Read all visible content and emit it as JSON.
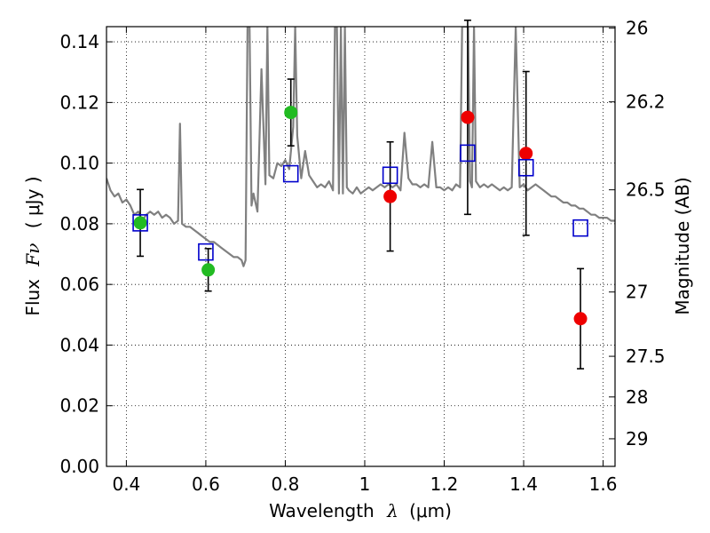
{
  "chart_data": {
    "type": "scatter",
    "xlabel_prefix": "Wavelength",
    "xlabel_symbol": "λ",
    "xlabel_unit": "(μm)",
    "ylabel_prefix": "Flux",
    "ylabel_symbol": "Fν",
    "ylabel_unit": "( μJy )",
    "y2label": "Magnitude (AB)",
    "xlim": [
      0.35,
      1.63
    ],
    "ylim": [
      0.0,
      0.145
    ],
    "x_ticks": [
      0.4,
      0.6,
      0.8,
      1.0,
      1.2,
      1.4,
      1.6
    ],
    "x_tick_labels": [
      "0.4",
      "0.6",
      "0.8",
      "1",
      "1.2",
      "1.4",
      "1.6"
    ],
    "y_ticks": [
      0.0,
      0.02,
      0.04,
      0.06,
      0.08,
      0.1,
      0.12,
      0.14
    ],
    "y_tick_labels": [
      "0.00",
      "0.02",
      "0.04",
      "0.06",
      "0.08",
      "0.10",
      "0.12",
      "0.14"
    ],
    "y2_ticks": [
      {
        "label": "26",
        "flux": 0.1445
      },
      {
        "label": "26.2",
        "flux": 0.1202
      },
      {
        "label": "26.5",
        "flux": 0.0912
      },
      {
        "label": "27",
        "flux": 0.0575
      },
      {
        "label": "27.5",
        "flux": 0.0363
      },
      {
        "label": "28",
        "flux": 0.0229
      },
      {
        "label": "29",
        "flux": 0.0091
      }
    ],
    "grid": true,
    "colors": {
      "green": "#22bb22",
      "red": "#ee0000",
      "model": "#808080",
      "model_marker": "#0000cc",
      "errorbar": "#000000"
    },
    "series": [
      {
        "marker": "circle",
        "color": "green",
        "x": [
          0.435,
          0.606,
          0.814
        ],
        "y": [
          0.0803,
          0.0648,
          0.1167
        ],
        "yerr": [
          0.011,
          0.007,
          0.011
        ]
      },
      {
        "marker": "circle",
        "color": "red",
        "x": [
          1.064,
          1.259,
          1.406,
          1.543
        ],
        "y": [
          0.089,
          0.1151,
          0.1032,
          0.0487
        ],
        "yerr": [
          0.018,
          0.032,
          0.027,
          0.0165
        ]
      },
      {
        "marker": "open-square",
        "color": "model_marker",
        "x": [
          0.435,
          0.6,
          0.814,
          1.064,
          1.259,
          1.406,
          1.543
        ],
        "y": [
          0.0803,
          0.0707,
          0.0965,
          0.096,
          0.1033,
          0.0985,
          0.0786
        ]
      },
      {
        "marker": "line",
        "color": "model",
        "x": [
          0.35,
          0.36,
          0.37,
          0.38,
          0.39,
          0.4,
          0.41,
          0.42,
          0.43,
          0.44,
          0.45,
          0.46,
          0.47,
          0.48,
          0.49,
          0.5,
          0.51,
          0.52,
          0.53,
          0.535,
          0.54,
          0.55,
          0.56,
          0.57,
          0.58,
          0.59,
          0.6,
          0.61,
          0.62,
          0.63,
          0.64,
          0.65,
          0.66,
          0.67,
          0.68,
          0.69,
          0.695,
          0.7,
          0.705,
          0.71,
          0.715,
          0.72,
          0.73,
          0.74,
          0.75,
          0.755,
          0.76,
          0.77,
          0.78,
          0.79,
          0.8,
          0.81,
          0.82,
          0.825,
          0.83,
          0.84,
          0.85,
          0.86,
          0.87,
          0.88,
          0.89,
          0.9,
          0.91,
          0.92,
          0.925,
          0.93,
          0.935,
          0.94,
          0.945,
          0.95,
          0.955,
          0.96,
          0.97,
          0.98,
          0.99,
          1.0,
          1.01,
          1.02,
          1.03,
          1.04,
          1.05,
          1.06,
          1.07,
          1.08,
          1.09,
          1.1,
          1.11,
          1.12,
          1.13,
          1.14,
          1.15,
          1.16,
          1.17,
          1.18,
          1.19,
          1.2,
          1.21,
          1.22,
          1.23,
          1.24,
          1.245,
          1.25,
          1.255,
          1.26,
          1.265,
          1.27,
          1.275,
          1.28,
          1.29,
          1.3,
          1.31,
          1.32,
          1.33,
          1.34,
          1.35,
          1.36,
          1.37,
          1.38,
          1.39,
          1.4,
          1.41,
          1.42,
          1.43,
          1.44,
          1.45,
          1.46,
          1.47,
          1.48,
          1.49,
          1.5,
          1.51,
          1.52,
          1.53,
          1.54,
          1.55,
          1.56,
          1.57,
          1.58,
          1.59,
          1.6,
          1.61,
          1.62,
          1.63
        ],
        "y": [
          0.095,
          0.091,
          0.089,
          0.09,
          0.087,
          0.088,
          0.086,
          0.083,
          0.084,
          0.081,
          0.083,
          0.084,
          0.083,
          0.084,
          0.082,
          0.083,
          0.082,
          0.08,
          0.081,
          0.113,
          0.08,
          0.079,
          0.079,
          0.078,
          0.077,
          0.076,
          0.075,
          0.074,
          0.074,
          0.073,
          0.072,
          0.071,
          0.07,
          0.069,
          0.069,
          0.068,
          0.066,
          0.068,
          0.145,
          0.145,
          0.086,
          0.09,
          0.084,
          0.131,
          0.093,
          0.145,
          0.096,
          0.095,
          0.1,
          0.099,
          0.101,
          0.098,
          0.112,
          0.145,
          0.109,
          0.095,
          0.104,
          0.096,
          0.094,
          0.092,
          0.093,
          0.092,
          0.094,
          0.091,
          0.145,
          0.145,
          0.09,
          0.145,
          0.09,
          0.145,
          0.092,
          0.091,
          0.09,
          0.092,
          0.09,
          0.091,
          0.092,
          0.091,
          0.092,
          0.093,
          0.092,
          0.093,
          0.092,
          0.093,
          0.091,
          0.11,
          0.095,
          0.093,
          0.093,
          0.092,
          0.093,
          0.092,
          0.107,
          0.092,
          0.092,
          0.091,
          0.092,
          0.091,
          0.093,
          0.092,
          0.145,
          0.145,
          0.145,
          0.145,
          0.094,
          0.092,
          0.145,
          0.094,
          0.092,
          0.093,
          0.092,
          0.093,
          0.092,
          0.091,
          0.092,
          0.091,
          0.092,
          0.145,
          0.092,
          0.093,
          0.091,
          0.092,
          0.093,
          0.092,
          0.091,
          0.09,
          0.089,
          0.089,
          0.088,
          0.087,
          0.087,
          0.086,
          0.086,
          0.085,
          0.085,
          0.084,
          0.083,
          0.083,
          0.082,
          0.082,
          0.082,
          0.081,
          0.081
        ]
      }
    ]
  }
}
